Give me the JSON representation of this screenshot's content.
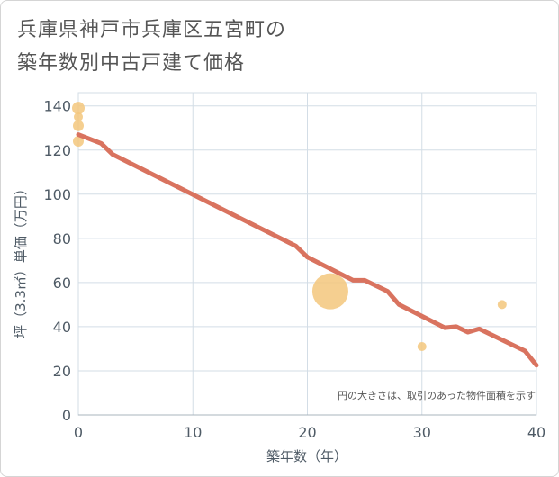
{
  "title_line1": "兵庫県神戸市兵庫区五宮町の",
  "title_line2": "築年数別中古戸建て価格",
  "chart_data": {
    "type": "scatter",
    "title": "兵庫県神戸市兵庫区五宮町の築年数別中古戸建て価格",
    "xlabel": "築年数（年）",
    "ylabel": "坪（3.3㎡）単価（万円）",
    "xlim": [
      0,
      40
    ],
    "ylim": [
      0,
      146
    ],
    "xticks": [
      0,
      10,
      20,
      30,
      40
    ],
    "yticks": [
      0,
      20,
      40,
      60,
      80,
      100,
      120,
      140
    ],
    "grid": true,
    "note": "円の大きさは、取引のあった物件面積を示す",
    "colors": {
      "line": "#d9735f",
      "bubble": "#f3c77d",
      "grid": "#d3dde6",
      "text": "#4f5b66"
    },
    "trend_line": {
      "x": [
        0,
        2,
        3,
        19,
        20,
        24,
        25,
        27,
        28,
        32,
        33,
        34,
        35,
        39,
        40
      ],
      "y": [
        127,
        123,
        118,
        76.5,
        71.5,
        61,
        61,
        56,
        50,
        39.5,
        40,
        37.5,
        39,
        29,
        22.5
      ]
    },
    "points": [
      {
        "x": 0,
        "y": 139,
        "size": 7
      },
      {
        "x": 0,
        "y": 135,
        "size": 5
      },
      {
        "x": 0,
        "y": 131,
        "size": 6
      },
      {
        "x": 0,
        "y": 124,
        "size": 6
      },
      {
        "x": 22,
        "y": 56,
        "size": 20
      },
      {
        "x": 30,
        "y": 31,
        "size": 5
      },
      {
        "x": 37,
        "y": 50,
        "size": 5
      }
    ]
  }
}
